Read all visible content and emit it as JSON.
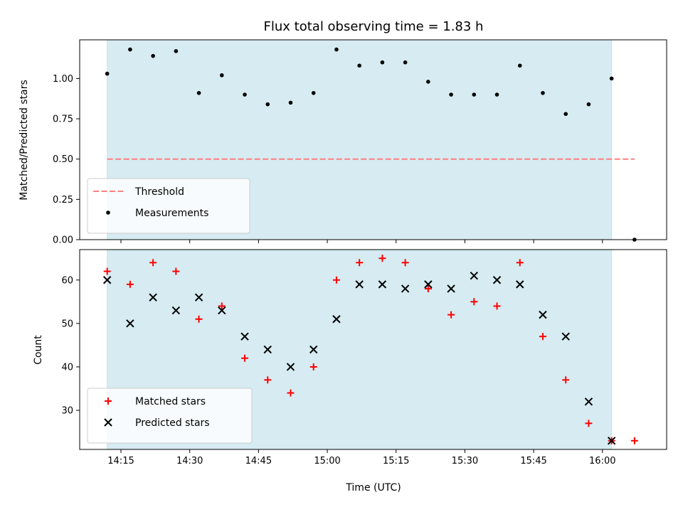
{
  "chart_data": [
    {
      "type": "scatter",
      "title": "Flux total observing time = 1.83 h",
      "xlabel": "",
      "ylabel": "Matched/Predicted stars",
      "ylim": [
        0,
        1.24
      ],
      "yticks": [
        "0.00",
        "0.25",
        "0.50",
        "0.75",
        "1.00"
      ],
      "yticks_values": [
        0,
        0.25,
        0.5,
        0.75,
        1.0
      ],
      "xlim": [
        "14:06",
        "16:14"
      ],
      "shaded_span": [
        "14:12",
        "16:02"
      ],
      "shade_color": "#add8e6",
      "threshold": {
        "name": "Threshold",
        "value": 0.5,
        "x_range": [
          "14:12",
          "16:07"
        ],
        "color": "#ff7f7f"
      },
      "series": [
        {
          "name": "Measurements",
          "color": "#000000",
          "x": [
            "14:12",
            "14:17",
            "14:22",
            "14:27",
            "14:32",
            "14:37",
            "14:42",
            "14:47",
            "14:52",
            "14:57",
            "15:02",
            "15:07",
            "15:12",
            "15:17",
            "15:22",
            "15:27",
            "15:32",
            "15:37",
            "15:42",
            "15:47",
            "15:52",
            "15:57",
            "16:02",
            "16:07"
          ],
          "y": [
            1.03,
            1.18,
            1.14,
            1.17,
            0.91,
            1.02,
            0.9,
            0.84,
            0.85,
            0.91,
            1.18,
            1.08,
            1.1,
            1.1,
            0.98,
            0.9,
            0.9,
            0.9,
            1.08,
            0.91,
            0.78,
            0.84,
            1.0,
            0.0
          ]
        }
      ],
      "legend": {
        "placement": "lower-left",
        "entries": [
          "Threshold",
          "Measurements"
        ]
      }
    },
    {
      "type": "scatter",
      "title": "",
      "xlabel": "Time (UTC)",
      "ylabel": "Count",
      "ylim": [
        21,
        67
      ],
      "yticks": [
        "30",
        "40",
        "50",
        "60"
      ],
      "yticks_values": [
        30,
        40,
        50,
        60
      ],
      "xlim": [
        "14:06",
        "16:14"
      ],
      "xticks": [
        "14:15",
        "14:30",
        "14:45",
        "15:00",
        "15:15",
        "15:30",
        "15:45",
        "16:00"
      ],
      "shaded_span": [
        "14:12",
        "16:02"
      ],
      "shade_color": "#add8e6",
      "series": [
        {
          "name": "Matched stars",
          "marker": "+",
          "color": "#ff0000",
          "x": [
            "14:12",
            "14:17",
            "14:22",
            "14:27",
            "14:32",
            "14:37",
            "14:42",
            "14:47",
            "14:52",
            "14:57",
            "15:02",
            "15:07",
            "15:12",
            "15:17",
            "15:22",
            "15:27",
            "15:32",
            "15:37",
            "15:42",
            "15:47",
            "15:52",
            "15:57",
            "16:02",
            "16:07"
          ],
          "y": [
            62,
            59,
            64,
            62,
            51,
            54,
            42,
            37,
            34,
            40,
            60,
            64,
            65,
            64,
            58,
            52,
            55,
            54,
            64,
            47,
            37,
            27,
            23,
            23
          ]
        },
        {
          "name": "Predicted stars",
          "marker": "x",
          "color": "#000000",
          "x": [
            "14:12",
            "14:17",
            "14:22",
            "14:27",
            "14:32",
            "14:37",
            "14:42",
            "14:47",
            "14:52",
            "14:57",
            "15:02",
            "15:07",
            "15:12",
            "15:17",
            "15:22",
            "15:27",
            "15:32",
            "15:37",
            "15:42",
            "15:47",
            "15:52",
            "15:57",
            "16:02"
          ],
          "y": [
            60,
            50,
            56,
            53,
            56,
            53,
            47,
            44,
            40,
            44,
            51,
            59,
            59,
            58,
            59,
            58,
            61,
            60,
            59,
            52,
            47,
            32,
            23
          ]
        }
      ],
      "legend": {
        "placement": "lower-left",
        "entries": [
          "Matched stars",
          "Predicted stars"
        ]
      }
    }
  ]
}
